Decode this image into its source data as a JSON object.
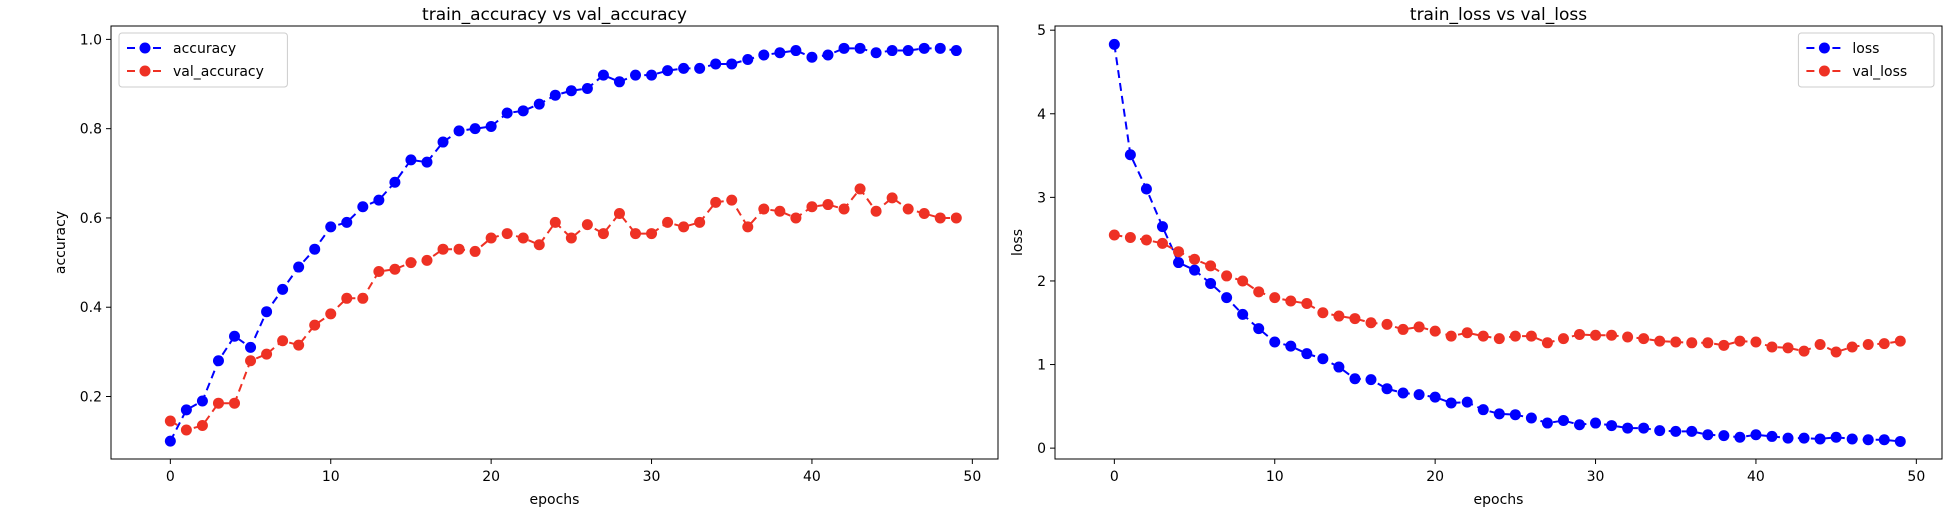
{
  "chart_data": [
    {
      "type": "line",
      "title": "train_accuracy vs val_accuracy",
      "xlabel": "epochs",
      "ylabel": "accuracy",
      "xlim": [
        -3.7,
        51.6
      ],
      "ylim": [
        0.06,
        1.03
      ],
      "xticks": [
        0,
        10,
        20,
        30,
        40,
        50
      ],
      "yticks": [
        0.2,
        0.4,
        0.6,
        0.8,
        1.0
      ],
      "xtick_labels": [
        "0",
        "10",
        "20",
        "30",
        "40",
        "50"
      ],
      "ytick_labels": [
        "0.2",
        "0.4",
        "0.6",
        "0.8",
        "1.0"
      ],
      "grid": false,
      "legend": "top-left",
      "series": [
        {
          "name": "accuracy",
          "color": "#0000ff",
          "style": "dashed-marker",
          "values": [
            0.1,
            0.17,
            0.19,
            0.28,
            0.335,
            0.31,
            0.39,
            0.44,
            0.49,
            0.53,
            0.58,
            0.59,
            0.625,
            0.64,
            0.68,
            0.73,
            0.725,
            0.77,
            0.795,
            0.8,
            0.805,
            0.835,
            0.84,
            0.855,
            0.875,
            0.885,
            0.89,
            0.92,
            0.905,
            0.92,
            0.92,
            0.93,
            0.935,
            0.935,
            0.945,
            0.945,
            0.955,
            0.965,
            0.97,
            0.975,
            0.96,
            0.965,
            0.98,
            0.98,
            0.97,
            0.975,
            0.975,
            0.98,
            0.98,
            0.975
          ]
        },
        {
          "name": "val_accuracy",
          "color": "#ee3124",
          "style": "dashed-marker",
          "values": [
            0.145,
            0.125,
            0.135,
            0.185,
            0.185,
            0.28,
            0.295,
            0.325,
            0.315,
            0.36,
            0.385,
            0.42,
            0.42,
            0.48,
            0.485,
            0.5,
            0.505,
            0.53,
            0.53,
            0.525,
            0.555,
            0.565,
            0.555,
            0.54,
            0.59,
            0.555,
            0.585,
            0.565,
            0.61,
            0.565,
            0.565,
            0.59,
            0.58,
            0.59,
            0.635,
            0.64,
            0.58,
            0.62,
            0.615,
            0.6,
            0.625,
            0.63,
            0.62,
            0.665,
            0.615,
            0.645,
            0.62,
            0.61,
            0.6,
            0.6
          ]
        }
      ]
    },
    {
      "type": "line",
      "title": "train_loss vs val_loss",
      "xlabel": "epochs",
      "ylabel": "loss",
      "xlim": [
        -3.7,
        51.6
      ],
      "ylim": [
        -0.13,
        5.05
      ],
      "xticks": [
        0,
        10,
        20,
        30,
        40,
        50
      ],
      "yticks": [
        0,
        1,
        2,
        3,
        4,
        5
      ],
      "xtick_labels": [
        "0",
        "10",
        "20",
        "30",
        "40",
        "50"
      ],
      "ytick_labels": [
        "0",
        "1",
        "2",
        "3",
        "4",
        "5"
      ],
      "grid": false,
      "legend": "top-right",
      "series": [
        {
          "name": "loss",
          "color": "#0000ff",
          "style": "dashed-marker",
          "values": [
            4.83,
            3.51,
            3.1,
            2.65,
            2.22,
            2.13,
            1.97,
            1.8,
            1.6,
            1.43,
            1.27,
            1.22,
            1.13,
            1.07,
            0.97,
            0.83,
            0.82,
            0.71,
            0.66,
            0.64,
            0.61,
            0.54,
            0.55,
            0.46,
            0.41,
            0.4,
            0.36,
            0.3,
            0.33,
            0.28,
            0.3,
            0.27,
            0.24,
            0.24,
            0.21,
            0.2,
            0.2,
            0.16,
            0.15,
            0.13,
            0.16,
            0.14,
            0.12,
            0.12,
            0.11,
            0.13,
            0.11,
            0.1,
            0.1,
            0.08
          ]
        },
        {
          "name": "val_loss",
          "color": "#ee3124",
          "style": "dashed-marker",
          "values": [
            2.55,
            2.52,
            2.49,
            2.45,
            2.35,
            2.26,
            2.18,
            2.06,
            2.0,
            1.87,
            1.8,
            1.76,
            1.73,
            1.62,
            1.58,
            1.55,
            1.5,
            1.48,
            1.42,
            1.45,
            1.4,
            1.34,
            1.38,
            1.34,
            1.31,
            1.34,
            1.34,
            1.26,
            1.31,
            1.36,
            1.35,
            1.35,
            1.33,
            1.31,
            1.28,
            1.27,
            1.26,
            1.26,
            1.23,
            1.28,
            1.27,
            1.21,
            1.2,
            1.16,
            1.24,
            1.15,
            1.21,
            1.24,
            1.25,
            1.28
          ]
        }
      ]
    }
  ]
}
